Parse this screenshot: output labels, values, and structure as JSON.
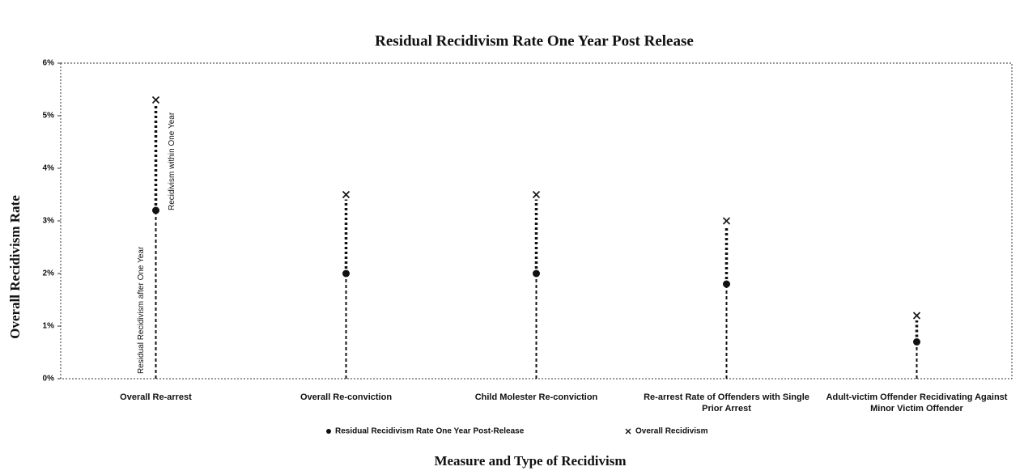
{
  "chart_data": {
    "type": "dot-range",
    "title": "Residual Recidivism Rate One Year Post Release",
    "y_label": "Overall Recidivism Rate",
    "x_label": "Measure and Type of Recidivism",
    "categories": [
      "Overall Re-arrest",
      "Overall Re-conviction",
      "Child Molester Re-conviction",
      "Re-arrest Rate of Offenders with Single Prior Arrest",
      "Adult-victim Offender Recidivating Against Minor Victim Offender"
    ],
    "series": [
      {
        "name": "Residual Recidivism Rate One Year Post-Release",
        "color": "#111111",
        "marker": "dot",
        "values": [
          3.2,
          2.0,
          2.0,
          1.8,
          0.7
        ]
      },
      {
        "name": "Overall Recidivism",
        "color": "#111111",
        "marker": "x",
        "values": [
          5.3,
          3.5,
          3.5,
          3.0,
          1.2
        ]
      }
    ],
    "annotations": [
      "Residual Recidivism after One Year",
      "Recidivism within One Year"
    ],
    "ylim": [
      0,
      6
    ],
    "yticks": [
      {
        "value": 0,
        "label": "0%"
      },
      {
        "value": 1,
        "label": "1%"
      },
      {
        "value": 2,
        "label": "2%"
      },
      {
        "value": 3,
        "label": "3%"
      },
      {
        "value": 4,
        "label": "4%"
      },
      {
        "value": 5,
        "label": "5%"
      },
      {
        "value": 6,
        "label": "6%"
      }
    ],
    "legend": "bottom"
  }
}
